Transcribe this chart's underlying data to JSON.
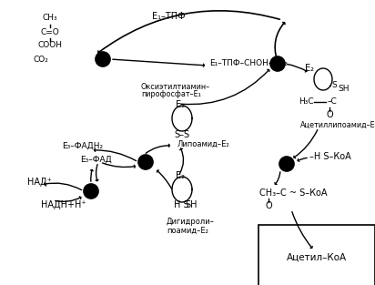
{
  "bg_color": "#f5f5f5",
  "text_color": "#000000",
  "figsize": [
    4.12,
    3.13
  ],
  "dpi": 100,
  "xlim": [
    0,
    412
  ],
  "ylim": [
    0,
    313
  ]
}
